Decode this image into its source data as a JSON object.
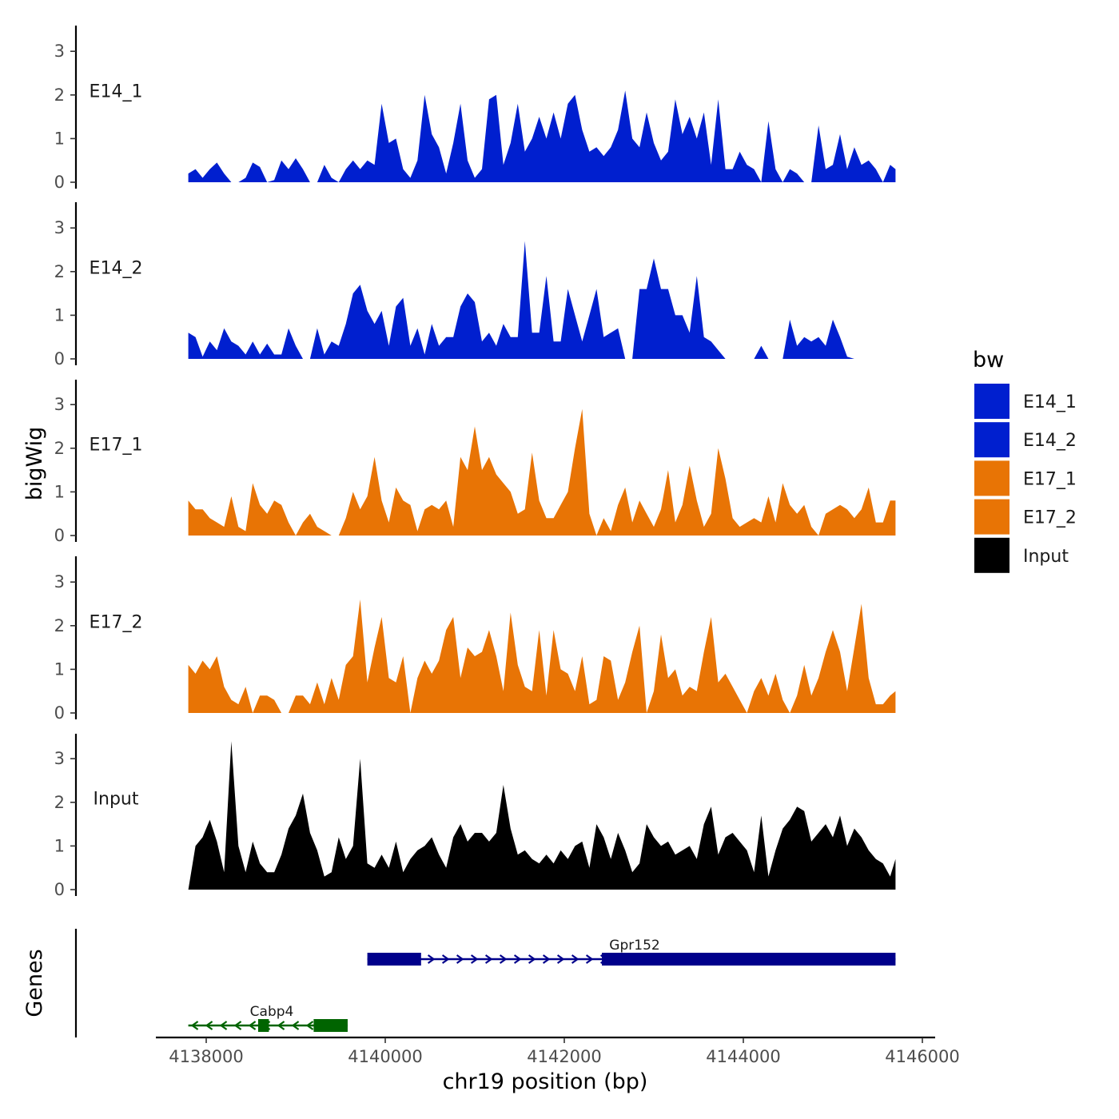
{
  "chart_data": {
    "type": "area",
    "description": "Genome browser coverage tracks",
    "y_axis_title": "bigWig",
    "genes_axis_title": "Genes",
    "xlabel": "chr19 position (bp)",
    "xlim": [
      4137800,
      4145700
    ],
    "x_ticks": [
      4138000,
      4140000,
      4142000,
      4144000,
      4146000
    ],
    "x_tick_labels": [
      "4138000",
      "4140000",
      "4142000",
      "4144000",
      "4146000"
    ],
    "ylim": [
      0,
      3.5
    ],
    "y_ticks": [
      0,
      1,
      2,
      3
    ],
    "y_tick_labels": [
      "0",
      "1",
      "2",
      "3"
    ],
    "legend": {
      "title": "bw",
      "entries": [
        {
          "label": "E14_1",
          "color": "#001fcf"
        },
        {
          "label": "E14_2",
          "color": "#001fcf"
        },
        {
          "label": "E17_1",
          "color": "#e87405"
        },
        {
          "label": "E17_2",
          "color": "#e87405"
        },
        {
          "label": "Input",
          "color": "#000000"
        }
      ]
    },
    "tracks": [
      {
        "name": "E14_1",
        "color": "#001fcf",
        "x": [
          4137800,
          4137880,
          4137960,
          4138040,
          4138120,
          4138200,
          4138280,
          4138360,
          4138440,
          4138520,
          4138600,
          4138680,
          4138760,
          4138840,
          4138920,
          4139000,
          4139080,
          4139160,
          4139240,
          4139320,
          4139400,
          4139480,
          4139560,
          4139640,
          4139720,
          4139800,
          4139880,
          4139960,
          4140040,
          4140120,
          4140200,
          4140280,
          4140360,
          4140440,
          4140520,
          4140600,
          4140680,
          4140760,
          4140840,
          4140920,
          4141000,
          4141080,
          4141160,
          4141240,
          4141320,
          4141400,
          4141480,
          4141560,
          4141640,
          4141720,
          4141800,
          4141880,
          4141960,
          4142040,
          4142120,
          4142200,
          4142280,
          4142360,
          4142440,
          4142520,
          4142600,
          4142680,
          4142760,
          4142840,
          4142920,
          4143000,
          4143080,
          4143160,
          4143240,
          4143320,
          4143400,
          4143480,
          4143560,
          4143640,
          4143720,
          4143800,
          4143880,
          4143960,
          4144040,
          4144120,
          4144200,
          4144280,
          4144360,
          4144440,
          4144520,
          4144600,
          4144680,
          4144760,
          4144840,
          4144920,
          4145000,
          4145080,
          4145160,
          4145240,
          4145320,
          4145400,
          4145480,
          4145560,
          4145640,
          4145700
        ],
        "values": [
          0.2,
          0.3,
          0.1,
          0.3,
          0.45,
          0.2,
          0,
          0,
          0.1,
          0.45,
          0.35,
          0,
          0.05,
          0.5,
          0.3,
          0.55,
          0.3,
          0,
          0,
          0.4,
          0.1,
          0,
          0.3,
          0.5,
          0.3,
          0.5,
          0.4,
          1.8,
          0.9,
          1.0,
          0.3,
          0.1,
          0.5,
          2.0,
          1.1,
          0.8,
          0.2,
          0.9,
          1.8,
          0.5,
          0.1,
          0.3,
          1.9,
          2.0,
          0.4,
          0.9,
          1.8,
          0.7,
          1.0,
          1.5,
          1.0,
          1.6,
          1.0,
          1.8,
          2.0,
          1.2,
          0.7,
          0.8,
          0.6,
          0.8,
          1.2,
          2.1,
          1.0,
          0.8,
          1.6,
          0.9,
          0.5,
          0.7,
          1.9,
          1.1,
          1.5,
          1.0,
          1.6,
          0.4,
          1.9,
          0.3,
          0.3,
          0.7,
          0.4,
          0.3,
          0,
          1.4,
          0.3,
          0,
          0.3,
          0.2,
          0,
          0,
          1.3,
          0.3,
          0.4,
          1.1,
          0.3,
          0.8,
          0.4,
          0.5,
          0.3,
          0,
          0.4,
          0.3
        ]
      },
      {
        "name": "E14_2",
        "color": "#001fcf",
        "x": [
          4137800,
          4137880,
          4137960,
          4138040,
          4138120,
          4138200,
          4138280,
          4138360,
          4138440,
          4138520,
          4138600,
          4138680,
          4138760,
          4138840,
          4138920,
          4139000,
          4139080,
          4139160,
          4139240,
          4139320,
          4139400,
          4139480,
          4139560,
          4139640,
          4139720,
          4139800,
          4139880,
          4139960,
          4140040,
          4140120,
          4140200,
          4140280,
          4140360,
          4140440,
          4140520,
          4140600,
          4140680,
          4140760,
          4140840,
          4140920,
          4141000,
          4141080,
          4141160,
          4141240,
          4141320,
          4141400,
          4141480,
          4141560,
          4141640,
          4141720,
          4141800,
          4141880,
          4141960,
          4142040,
          4142120,
          4142200,
          4142280,
          4142360,
          4142440,
          4142520,
          4142600,
          4142680,
          4142760,
          4142840,
          4142920,
          4143000,
          4143080,
          4143160,
          4143240,
          4143320,
          4143400,
          4143480,
          4143560,
          4143640,
          4143720,
          4143800,
          4143880,
          4143960,
          4144040,
          4144120,
          4144200,
          4144280,
          4144360,
          4144440,
          4144520,
          4144600,
          4144680,
          4144760,
          4144840,
          4144920,
          4145000,
          4145080,
          4145160,
          4145240,
          4145320,
          4145400,
          4145480,
          4145560,
          4145640,
          4145700
        ],
        "values": [
          0.6,
          0.5,
          0.05,
          0.4,
          0.2,
          0.7,
          0.4,
          0.3,
          0.1,
          0.4,
          0.1,
          0.35,
          0.1,
          0.1,
          0.7,
          0.3,
          0,
          0,
          0.7,
          0.1,
          0.4,
          0.3,
          0.8,
          1.5,
          1.7,
          1.1,
          0.8,
          1.1,
          0.3,
          1.2,
          1.4,
          0.3,
          0.7,
          0.1,
          0.8,
          0.3,
          0.5,
          0.5,
          1.2,
          1.5,
          1.3,
          0.4,
          0.6,
          0.3,
          0.8,
          0.5,
          0.5,
          2.7,
          0.6,
          0.6,
          1.9,
          0.4,
          0.4,
          1.6,
          1.0,
          0.4,
          1.0,
          1.6,
          0.5,
          0.6,
          0.7,
          0,
          0,
          1.6,
          1.6,
          2.3,
          1.6,
          1.6,
          1.0,
          1.0,
          0.6,
          1.9,
          0.5,
          0.4,
          0.2,
          0,
          0,
          0,
          0,
          0,
          0.3,
          0,
          0,
          0,
          0.9,
          0.3,
          0.5,
          0.4,
          0.5,
          0.3,
          0.9,
          0.5,
          0.05,
          0,
          0,
          0,
          0,
          0,
          0,
          0
        ]
      },
      {
        "name": "E17_1",
        "color": "#e87405",
        "x": [
          4137800,
          4137880,
          4137960,
          4138040,
          4138120,
          4138200,
          4138280,
          4138360,
          4138440,
          4138520,
          4138600,
          4138680,
          4138760,
          4138840,
          4138920,
          4139000,
          4139080,
          4139160,
          4139240,
          4139320,
          4139400,
          4139480,
          4139560,
          4139640,
          4139720,
          4139800,
          4139880,
          4139960,
          4140040,
          4140120,
          4140200,
          4140280,
          4140360,
          4140440,
          4140520,
          4140600,
          4140680,
          4140760,
          4140840,
          4140920,
          4141000,
          4141080,
          4141160,
          4141240,
          4141320,
          4141400,
          4141480,
          4141560,
          4141640,
          4141720,
          4141800,
          4141880,
          4141960,
          4142040,
          4142120,
          4142200,
          4142280,
          4142360,
          4142440,
          4142520,
          4142600,
          4142680,
          4142760,
          4142840,
          4142920,
          4143000,
          4143080,
          4143160,
          4143240,
          4143320,
          4143400,
          4143480,
          4143560,
          4143640,
          4143720,
          4143800,
          4143880,
          4143960,
          4144040,
          4144120,
          4144200,
          4144280,
          4144360,
          4144440,
          4144520,
          4144600,
          4144680,
          4144760,
          4144840,
          4144920,
          4145000,
          4145080,
          4145160,
          4145240,
          4145320,
          4145400,
          4145480,
          4145560,
          4145640,
          4145700
        ],
        "values": [
          0.8,
          0.6,
          0.6,
          0.4,
          0.3,
          0.2,
          0.9,
          0.2,
          0.1,
          1.2,
          0.7,
          0.5,
          0.8,
          0.7,
          0.3,
          0,
          0.3,
          0.5,
          0.2,
          0.1,
          0,
          0,
          0.4,
          1.0,
          0.6,
          0.9,
          1.8,
          0.8,
          0.3,
          1.1,
          0.8,
          0.7,
          0.1,
          0.6,
          0.7,
          0.6,
          0.8,
          0.2,
          1.8,
          1.5,
          2.5,
          1.5,
          1.8,
          1.4,
          1.2,
          1.0,
          0.5,
          0.6,
          1.9,
          0.8,
          0.4,
          0.4,
          0.7,
          1.0,
          2.0,
          2.9,
          0.5,
          0,
          0.4,
          0.1,
          0.7,
          1.1,
          0.3,
          0.8,
          0.5,
          0.2,
          0.6,
          1.5,
          0.3,
          0.7,
          1.6,
          0.8,
          0.2,
          0.5,
          2.0,
          1.3,
          0.4,
          0.2,
          0.3,
          0.4,
          0.3,
          0.9,
          0.3,
          1.2,
          0.7,
          0.5,
          0.7,
          0.2,
          0,
          0.5,
          0.6,
          0.7,
          0.6,
          0.4,
          0.6,
          1.1,
          0.3,
          0.3,
          0.8,
          0.8
        ]
      },
      {
        "name": "E17_2",
        "color": "#e87405",
        "x": [
          4137800,
          4137880,
          4137960,
          4138040,
          4138120,
          4138200,
          4138280,
          4138360,
          4138440,
          4138520,
          4138600,
          4138680,
          4138760,
          4138840,
          4138920,
          4139000,
          4139080,
          4139160,
          4139240,
          4139320,
          4139400,
          4139480,
          4139560,
          4139640,
          4139720,
          4139800,
          4139880,
          4139960,
          4140040,
          4140120,
          4140200,
          4140280,
          4140360,
          4140440,
          4140520,
          4140600,
          4140680,
          4140760,
          4140840,
          4140920,
          4141000,
          4141080,
          4141160,
          4141240,
          4141320,
          4141400,
          4141480,
          4141560,
          4141640,
          4141720,
          4141800,
          4141880,
          4141960,
          4142040,
          4142120,
          4142200,
          4142280,
          4142360,
          4142440,
          4142520,
          4142600,
          4142680,
          4142760,
          4142840,
          4142920,
          4143000,
          4143080,
          4143160,
          4143240,
          4143320,
          4143400,
          4143480,
          4143560,
          4143640,
          4143720,
          4143800,
          4143880,
          4143960,
          4144040,
          4144120,
          4144200,
          4144280,
          4144360,
          4144440,
          4144520,
          4144600,
          4144680,
          4144760,
          4144840,
          4144920,
          4145000,
          4145080,
          4145160,
          4145240,
          4145320,
          4145400,
          4145480,
          4145560,
          4145640,
          4145700
        ],
        "values": [
          1.1,
          0.9,
          1.2,
          1.0,
          1.3,
          0.6,
          0.3,
          0.2,
          0.6,
          0,
          0.4,
          0.4,
          0.3,
          0,
          0,
          0.4,
          0.4,
          0.2,
          0.7,
          0.2,
          0.8,
          0.3,
          1.1,
          1.3,
          2.6,
          0.7,
          1.5,
          2.2,
          0.8,
          0.7,
          1.3,
          0,
          0.8,
          1.2,
          0.9,
          1.2,
          1.9,
          2.2,
          0.8,
          1.5,
          1.3,
          1.4,
          1.9,
          1.3,
          0.5,
          2.3,
          1.1,
          0.6,
          0.5,
          1.9,
          0.4,
          1.9,
          1.0,
          0.9,
          0.5,
          1.3,
          0.2,
          0.3,
          1.3,
          1.2,
          0.3,
          0.7,
          1.4,
          2.0,
          0,
          0.5,
          1.8,
          0.8,
          1.0,
          0.4,
          0.6,
          0.5,
          1.4,
          2.2,
          0.7,
          0.9,
          0.6,
          0.3,
          0,
          0.5,
          0.8,
          0.4,
          0.9,
          0.3,
          0,
          0.4,
          1.1,
          0.4,
          0.8,
          1.4,
          1.9,
          1.4,
          0.5,
          1.5,
          2.5,
          0.8,
          0.2,
          0.2,
          0.4,
          0.5
        ]
      },
      {
        "name": "Input",
        "color": "#000000",
        "x": [
          4137800,
          4137880,
          4137960,
          4138040,
          4138120,
          4138200,
          4138280,
          4138360,
          4138440,
          4138520,
          4138600,
          4138680,
          4138760,
          4138840,
          4138920,
          4139000,
          4139080,
          4139160,
          4139240,
          4139320,
          4139400,
          4139480,
          4139560,
          4139640,
          4139720,
          4139800,
          4139880,
          4139960,
          4140040,
          4140120,
          4140200,
          4140280,
          4140360,
          4140440,
          4140520,
          4140600,
          4140680,
          4140760,
          4140840,
          4140920,
          4141000,
          4141080,
          4141160,
          4141240,
          4141320,
          4141400,
          4141480,
          4141560,
          4141640,
          4141720,
          4141800,
          4141880,
          4141960,
          4142040,
          4142120,
          4142200,
          4142280,
          4142360,
          4142440,
          4142520,
          4142600,
          4142680,
          4142760,
          4142840,
          4142920,
          4143000,
          4143080,
          4143160,
          4143240,
          4143320,
          4143400,
          4143480,
          4143560,
          4143640,
          4143720,
          4143800,
          4143880,
          4143960,
          4144040,
          4144120,
          4144200,
          4144280,
          4144360,
          4144440,
          4144520,
          4144600,
          4144680,
          4144760,
          4144840,
          4144920,
          4145000,
          4145080,
          4145160,
          4145240,
          4145320,
          4145400,
          4145480,
          4145560,
          4145640,
          4145700
        ],
        "values": [
          0,
          1.0,
          1.2,
          1.6,
          1.1,
          0.4,
          3.4,
          1.0,
          0.4,
          1.1,
          0.6,
          0.4,
          0.4,
          0.8,
          1.4,
          1.7,
          2.2,
          1.3,
          0.9,
          0.3,
          0.4,
          1.2,
          0.7,
          1.0,
          3.0,
          0.6,
          0.5,
          0.8,
          0.5,
          1.1,
          0.4,
          0.7,
          0.9,
          1.0,
          1.2,
          0.8,
          0.5,
          1.2,
          1.5,
          1.1,
          1.3,
          1.3,
          1.1,
          1.3,
          2.4,
          1.4,
          0.8,
          0.9,
          0.7,
          0.6,
          0.8,
          0.6,
          0.9,
          0.7,
          1.0,
          1.1,
          0.5,
          1.5,
          1.2,
          0.7,
          1.3,
          0.9,
          0.4,
          0.6,
          1.5,
          1.2,
          1.0,
          1.1,
          0.8,
          0.9,
          1.0,
          0.7,
          1.5,
          1.9,
          0.8,
          1.2,
          1.3,
          1.1,
          0.9,
          0.4,
          1.7,
          0.3,
          0.9,
          1.4,
          1.6,
          1.9,
          1.8,
          1.1,
          1.3,
          1.5,
          1.2,
          1.7,
          1.0,
          1.4,
          1.2,
          0.9,
          0.7,
          0.6,
          0.3,
          0.7
        ]
      }
    ],
    "genes": [
      {
        "name": "Gpr152",
        "strand": "+",
        "color": "#00008b",
        "start": 4139800,
        "end": 4145700,
        "exons": [
          [
            4139800,
            4140400
          ],
          [
            4142420,
            4145700
          ]
        ],
        "row": 0
      },
      {
        "name": "Cabp4",
        "strand": "-",
        "color": "#006400",
        "start": 4137800,
        "end": 4139580,
        "exons": [
          [
            4138580,
            4138700
          ],
          [
            4139200,
            4139580
          ]
        ],
        "row": 1
      }
    ]
  }
}
